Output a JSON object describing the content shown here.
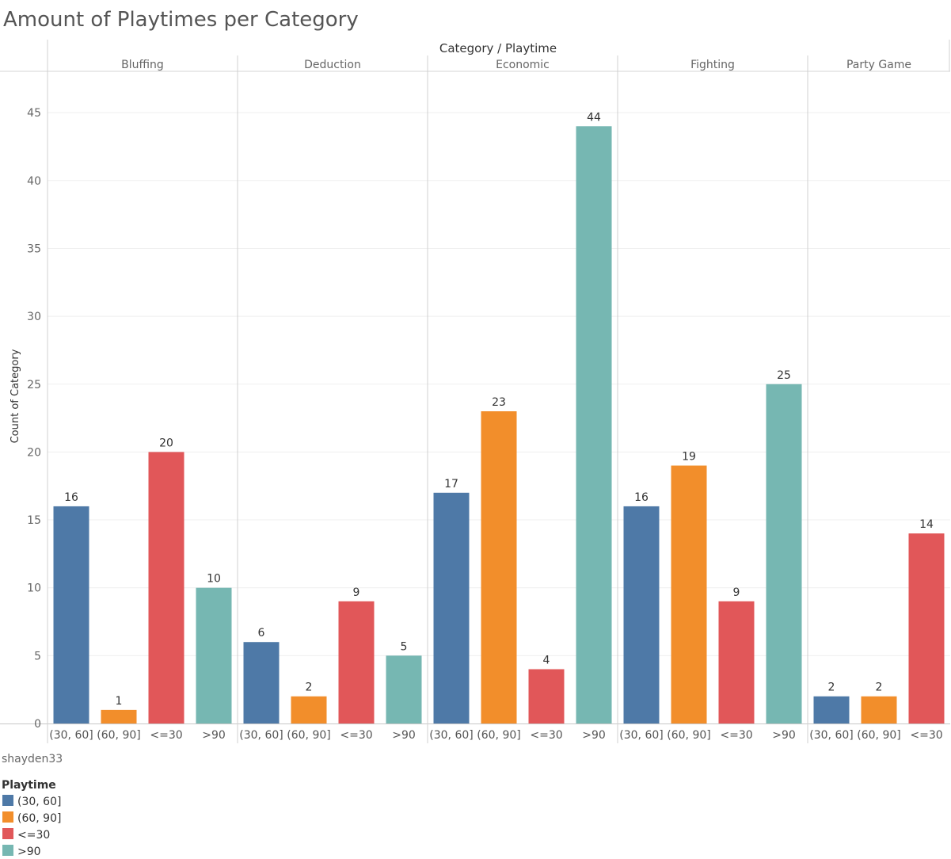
{
  "title": "Amount of Playtimes per Category",
  "header_title": "Category / Playtime",
  "author": "shayden33",
  "legend": {
    "title": "Playtime",
    "items": [
      {
        "label": "(30, 60]",
        "color": "#4e79a7"
      },
      {
        "label": "(60, 90]",
        "color": "#f28e2b"
      },
      {
        "label": "<=30",
        "color": "#e15759"
      },
      {
        "label": ">90",
        "color": "#76b7b2"
      }
    ]
  },
  "chart_data": {
    "type": "bar",
    "title": "Amount of Playtimes per Category",
    "ylabel": "Count of Category",
    "ylim": [
      0,
      47.5
    ],
    "yticks": [
      0,
      5,
      10,
      15,
      20,
      25,
      30,
      35,
      40,
      45
    ],
    "grid": true,
    "legend_position": "bottom-left",
    "groups": [
      {
        "category": "Bluffing",
        "bars": [
          {
            "playtime": "(30, 60]",
            "value": 16
          },
          {
            "playtime": "(60, 90]",
            "value": 1
          },
          {
            "playtime": "<=30",
            "value": 20
          },
          {
            "playtime": ">90",
            "value": 10
          }
        ]
      },
      {
        "category": "Deduction",
        "bars": [
          {
            "playtime": "(30, 60]",
            "value": 6
          },
          {
            "playtime": "(60, 90]",
            "value": 2
          },
          {
            "playtime": "<=30",
            "value": 9
          },
          {
            "playtime": ">90",
            "value": 5
          }
        ]
      },
      {
        "category": "Economic",
        "bars": [
          {
            "playtime": "(30, 60]",
            "value": 17
          },
          {
            "playtime": "(60, 90]",
            "value": 23
          },
          {
            "playtime": "<=30",
            "value": 4
          },
          {
            "playtime": ">90",
            "value": 44
          }
        ]
      },
      {
        "category": "Fighting",
        "bars": [
          {
            "playtime": "(30, 60]",
            "value": 16
          },
          {
            "playtime": "(60, 90]",
            "value": 19
          },
          {
            "playtime": "<=30",
            "value": 9
          },
          {
            "playtime": ">90",
            "value": 25
          }
        ]
      },
      {
        "category": "Party Game",
        "bars": [
          {
            "playtime": "(30, 60]",
            "value": 2
          },
          {
            "playtime": "(60, 90]",
            "value": 2
          },
          {
            "playtime": "<=30",
            "value": 14
          }
        ]
      }
    ]
  }
}
